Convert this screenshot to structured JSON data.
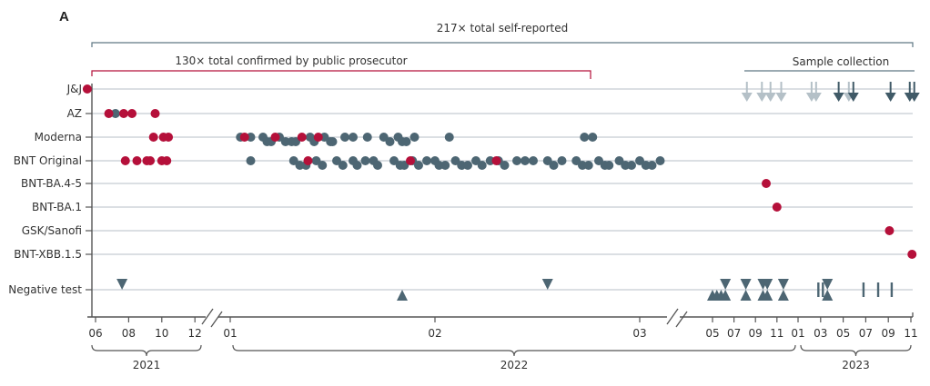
{
  "chart_data": {
    "type": "scatter",
    "panel_label": "A",
    "title": "",
    "xlabel": "",
    "ylabel": "",
    "colors": {
      "confirmed": "#b5103a",
      "self_reported": "#4d6673",
      "sample_light": "#b4c0c7",
      "sample_dark": "#405a67",
      "gridline": "#c5ccd2",
      "axis": "#555555",
      "bracket_total": "#5f7784",
      "bracket_confirmed": "#b5103a"
    },
    "annotations": {
      "total_self_reported": "217× total self-reported",
      "total_confirmed": "130× total confirmed by public prosecutor",
      "sample_collection": "Sample collection"
    },
    "categories": [
      "J&J",
      "AZ",
      "Moderna",
      "BNT Original",
      "BNT-BA.4-5",
      "BNT-BA.1",
      "GSK/Sanofi",
      "BNT-XBB.1.5",
      "Negative test"
    ],
    "x_axis": {
      "segments": [
        {
          "year": "2021",
          "ticks": [
            "06",
            "08",
            "10",
            "12"
          ],
          "range": [
            "2021-06",
            "2021-12"
          ]
        },
        {
          "year": "2022",
          "ticks": [
            "01",
            "02",
            "03"
          ],
          "range": [
            "2022-01",
            "2022-03"
          ],
          "continues_with_ticks": [
            "05",
            "07",
            "09",
            "11"
          ]
        },
        {
          "year": "2023",
          "ticks": [
            "01",
            "03",
            "05",
            "07",
            "09",
            "11"
          ],
          "range": [
            "2023-01",
            "2023-11"
          ]
        }
      ],
      "year_labels": [
        "2021",
        "2022",
        "2023"
      ],
      "axis_breaks": [
        "between 2021-12 and 2022-01",
        "between 2022-03 and 2022-05"
      ]
    },
    "legend": {
      "red_dot": "confirmed by public prosecutor",
      "grey_dot": "self-reported",
      "arrow_light": "sample collection",
      "arrow_dark": "sample collection",
      "triangle": "negative test"
    },
    "series": [
      {
        "name": "J&J",
        "confirmed": [
          105.5
        ],
        "self_reported": []
      },
      {
        "name": "AZ",
        "confirmed": [
          106.8,
          107.7,
          108.2,
          109.6
        ],
        "self_reported": [
          107.2
        ]
      },
      {
        "name": "Moderna",
        "confirmed": [
          109.5,
          110.1,
          110.4,
          201.07,
          201.22,
          201.35,
          201.43
        ],
        "self_reported": [
          201.05,
          201.1,
          201.16,
          201.18,
          201.2,
          201.24,
          201.27,
          201.3,
          201.32,
          201.39,
          201.41,
          201.46,
          201.49,
          201.5,
          201.56,
          201.6,
          201.67,
          201.75,
          201.78,
          201.82,
          201.84,
          201.86,
          201.9,
          202.07,
          202.73,
          202.77
        ]
      },
      {
        "name": "BNT Original",
        "confirmed": [
          107.8,
          108.5,
          109.1,
          109.3,
          110.0,
          110.3,
          201.38,
          201.88,
          202.3
        ],
        "self_reported": [
          201.1,
          201.31,
          201.34,
          201.37,
          201.42,
          201.45,
          201.52,
          201.55,
          201.6,
          201.62,
          201.66,
          201.7,
          201.72,
          201.8,
          201.83,
          201.85,
          201.89,
          201.92,
          201.96,
          202.0,
          202.02,
          202.05,
          202.1,
          202.13,
          202.16,
          202.2,
          202.23,
          202.27,
          202.31,
          202.34,
          202.4,
          202.44,
          202.48,
          202.55,
          202.58,
          202.62,
          202.69,
          202.72,
          202.75,
          202.8,
          202.83,
          202.85,
          202.9,
          202.93,
          202.96,
          203.0,
          203.03,
          203.06,
          203.1
        ]
      },
      {
        "name": "BNT-BA.4-5",
        "confirmed": [
          210.0
        ],
        "self_reported": []
      },
      {
        "name": "BNT-BA.1",
        "confirmed": [
          211.0
        ],
        "self_reported": []
      },
      {
        "name": "GSK/Sanofi",
        "confirmed": [
          309.1
        ],
        "self_reported": []
      },
      {
        "name": "BNT-XBB.1.5",
        "confirmed": [
          311.1
        ],
        "self_reported": []
      }
    ],
    "sample_collection": {
      "light": [
        208.2,
        209.6,
        210.4,
        211.4,
        302.2,
        302.6,
        305.5
      ],
      "dark": [
        304.6,
        305.9,
        309.2,
        310.9,
        311.3
      ]
    },
    "negative_tests": {
      "down": [
        107.6,
        202.55,
        206.2,
        208.1,
        209.7,
        210.1,
        211.6,
        303.6
      ],
      "up": [
        201.84,
        205.0,
        205.4,
        205.8,
        206.2,
        208.1,
        209.7,
        210.1,
        211.6,
        303.6
      ],
      "bar": [
        302.8,
        303.2,
        306.8,
        308.1,
        309.3
      ]
    }
  }
}
